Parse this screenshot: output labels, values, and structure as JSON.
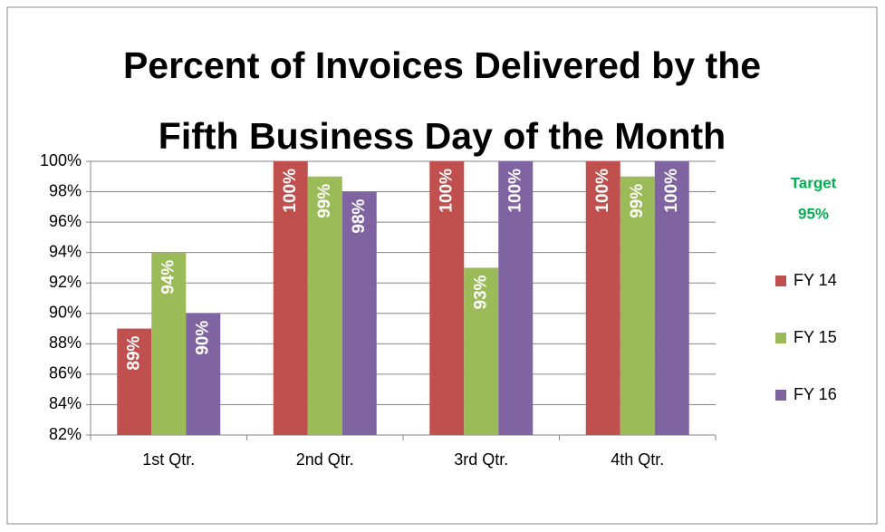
{
  "chart_data": {
    "type": "bar",
    "title": [
      "Percent of Invoices Delivered by the",
      "Fifth Business Day of the Month"
    ],
    "categories": [
      "1st Qtr.",
      "2nd Qtr.",
      "3rd Qtr.",
      "4th Qtr."
    ],
    "series": [
      {
        "name": "FY 14",
        "color": "#c0504d",
        "values": [
          89,
          100,
          100,
          100
        ],
        "value_labels": [
          "89%",
          "100%",
          "100%",
          "100%"
        ]
      },
      {
        "name": "FY 15",
        "color": "#9bbb59",
        "values": [
          94,
          99,
          93,
          99
        ],
        "value_labels": [
          "94%",
          "99%",
          "93%",
          "99%"
        ]
      },
      {
        "name": "FY 16",
        "color": "#8064a2",
        "values": [
          90,
          98,
          100,
          100
        ],
        "value_labels": [
          "90%",
          "98%",
          "100%",
          "100%"
        ]
      }
    ],
    "ylim": [
      82,
      100
    ],
    "yticks": [
      {
        "value": 82,
        "label": "82%"
      },
      {
        "value": 84,
        "label": "84%"
      },
      {
        "value": 86,
        "label": "86%"
      },
      {
        "value": 88,
        "label": "88%"
      },
      {
        "value": 90,
        "label": "90%"
      },
      {
        "value": 92,
        "label": "92%"
      },
      {
        "value": 94,
        "label": "94%"
      },
      {
        "value": 96,
        "label": "96%"
      },
      {
        "value": 98,
        "label": "98%"
      },
      {
        "value": 100,
        "label": "100%"
      }
    ],
    "grid": true,
    "legend": "right",
    "annotation": [
      "Target",
      "95%"
    ],
    "annotation_color": "#00b050"
  }
}
